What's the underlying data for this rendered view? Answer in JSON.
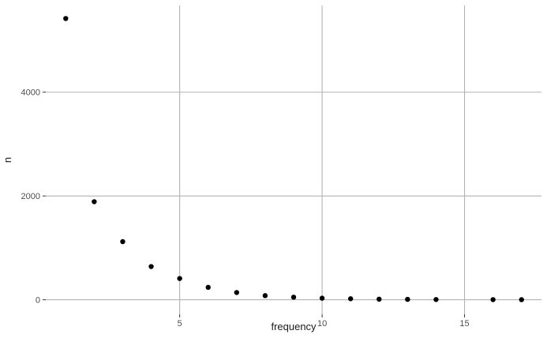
{
  "chart_data": {
    "type": "scatter",
    "title": "",
    "xlabel": "frequency",
    "ylabel": "n",
    "xlim": [
      0.3,
      17.7
    ],
    "ylim": [
      -280,
      5670
    ],
    "x_ticks": [
      5,
      10,
      15
    ],
    "y_ticks": [
      0,
      2000,
      4000
    ],
    "grid": true,
    "series": [
      {
        "points": [
          {
            "x": 1,
            "y": 5420
          },
          {
            "x": 2,
            "y": 1890
          },
          {
            "x": 3,
            "y": 1120
          },
          {
            "x": 4,
            "y": 640
          },
          {
            "x": 5,
            "y": 410
          },
          {
            "x": 6,
            "y": 240
          },
          {
            "x": 7,
            "y": 140
          },
          {
            "x": 8,
            "y": 80
          },
          {
            "x": 9,
            "y": 50
          },
          {
            "x": 10,
            "y": 30
          },
          {
            "x": 11,
            "y": 20
          },
          {
            "x": 12,
            "y": 12
          },
          {
            "x": 13,
            "y": 8
          },
          {
            "x": 14,
            "y": 5
          },
          {
            "x": 16,
            "y": 3
          },
          {
            "x": 17,
            "y": 2
          }
        ]
      }
    ]
  }
}
